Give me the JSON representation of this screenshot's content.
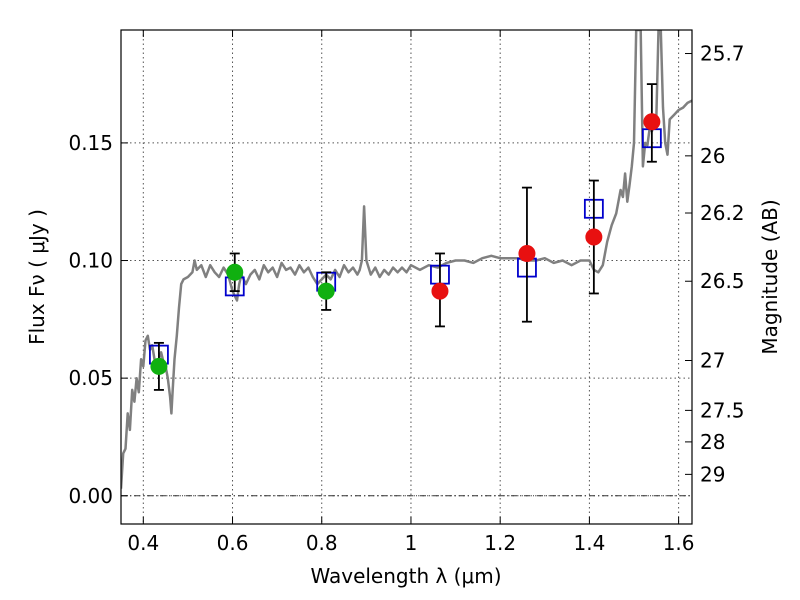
{
  "chart_data": {
    "type": "scatter",
    "title": "",
    "xlabel": "Wavelength  λ (μm)",
    "ylabel": "Flux  Fν  ( μJy )",
    "ylabel_right": "Magnitude (AB)",
    "xlim": [
      0.35,
      1.63
    ],
    "ylim": [
      -0.012,
      0.198
    ],
    "grid": true,
    "x_ticks": [
      0.4,
      0.6,
      0.8,
      1.0,
      1.2,
      1.4,
      1.6
    ],
    "x_tick_labels": [
      "0.4",
      "0.6",
      "0.8",
      "1",
      "1.2",
      "1.4",
      "1.6"
    ],
    "y_ticks": [
      0.0,
      0.05,
      0.1,
      0.15
    ],
    "y_tick_labels": [
      "0.00",
      "0.05",
      "0.10",
      "0.15"
    ],
    "right_ticks": [
      {
        "label": "25.7",
        "flux": 0.188
      },
      {
        "label": "26",
        "flux": 0.1445
      },
      {
        "label": "26.2",
        "flux": 0.1202
      },
      {
        "label": "26.5",
        "flux": 0.0912
      },
      {
        "label": "27",
        "flux": 0.0575
      },
      {
        "label": "27.5",
        "flux": 0.0363
      },
      {
        "label": "28",
        "flux": 0.0229
      },
      {
        "label": "29",
        "flux": 0.0091
      }
    ],
    "colors": {
      "model": "#808080",
      "square": "#0000cc",
      "green": "#10b010",
      "red": "#e81010",
      "errorbar": "#000000",
      "grid": "#555555"
    },
    "series": [
      {
        "kind": "model",
        "points": [
          [
            0.35,
            0.003
          ],
          [
            0.355,
            0.018
          ],
          [
            0.36,
            0.02
          ],
          [
            0.365,
            0.035
          ],
          [
            0.37,
            0.028
          ],
          [
            0.375,
            0.045
          ],
          [
            0.38,
            0.04
          ],
          [
            0.385,
            0.05
          ],
          [
            0.39,
            0.044
          ],
          [
            0.395,
            0.058
          ],
          [
            0.4,
            0.055
          ],
          [
            0.405,
            0.066
          ],
          [
            0.41,
            0.068
          ],
          [
            0.415,
            0.062
          ],
          [
            0.42,
            0.064
          ],
          [
            0.425,
            0.058
          ],
          [
            0.43,
            0.055
          ],
          [
            0.435,
            0.058
          ],
          [
            0.44,
            0.061
          ],
          [
            0.445,
            0.057
          ],
          [
            0.45,
            0.055
          ],
          [
            0.455,
            0.05
          ],
          [
            0.46,
            0.042
          ],
          [
            0.463,
            0.035
          ],
          [
            0.466,
            0.045
          ],
          [
            0.47,
            0.058
          ],
          [
            0.475,
            0.068
          ],
          [
            0.48,
            0.08
          ],
          [
            0.485,
            0.09
          ],
          [
            0.49,
            0.092
          ],
          [
            0.5,
            0.093
          ],
          [
            0.51,
            0.095
          ],
          [
            0.515,
            0.1
          ],
          [
            0.52,
            0.096
          ],
          [
            0.53,
            0.098
          ],
          [
            0.54,
            0.093
          ],
          [
            0.55,
            0.098
          ],
          [
            0.56,
            0.095
          ],
          [
            0.57,
            0.093
          ],
          [
            0.58,
            0.097
          ],
          [
            0.59,
            0.094
          ],
          [
            0.6,
            0.087
          ],
          [
            0.605,
            0.085
          ],
          [
            0.61,
            0.083
          ],
          [
            0.615,
            0.09
          ],
          [
            0.62,
            0.094
          ],
          [
            0.63,
            0.09
          ],
          [
            0.64,
            0.094
          ],
          [
            0.65,
            0.096
          ],
          [
            0.66,
            0.092
          ],
          [
            0.67,
            0.098
          ],
          [
            0.68,
            0.095
          ],
          [
            0.69,
            0.097
          ],
          [
            0.7,
            0.093
          ],
          [
            0.71,
            0.099
          ],
          [
            0.72,
            0.096
          ],
          [
            0.73,
            0.097
          ],
          [
            0.74,
            0.094
          ],
          [
            0.75,
            0.098
          ],
          [
            0.76,
            0.095
          ],
          [
            0.77,
            0.097
          ],
          [
            0.78,
            0.093
          ],
          [
            0.79,
            0.09
          ],
          [
            0.8,
            0.092
          ],
          [
            0.81,
            0.094
          ],
          [
            0.82,
            0.092
          ],
          [
            0.83,
            0.096
          ],
          [
            0.84,
            0.093
          ],
          [
            0.85,
            0.098
          ],
          [
            0.86,
            0.095
          ],
          [
            0.87,
            0.097
          ],
          [
            0.88,
            0.094
          ],
          [
            0.885,
            0.096
          ],
          [
            0.89,
            0.1
          ],
          [
            0.895,
            0.123
          ],
          [
            0.9,
            0.1
          ],
          [
            0.91,
            0.094
          ],
          [
            0.92,
            0.097
          ],
          [
            0.93,
            0.093
          ],
          [
            0.94,
            0.096
          ],
          [
            0.95,
            0.094
          ],
          [
            0.96,
            0.097
          ],
          [
            0.97,
            0.095
          ],
          [
            0.98,
            0.097
          ],
          [
            0.99,
            0.095
          ],
          [
            1.0,
            0.098
          ],
          [
            1.02,
            0.096
          ],
          [
            1.04,
            0.098
          ],
          [
            1.06,
            0.097
          ],
          [
            1.08,
            0.099
          ],
          [
            1.1,
            0.1
          ],
          [
            1.12,
            0.1
          ],
          [
            1.14,
            0.099
          ],
          [
            1.16,
            0.101
          ],
          [
            1.18,
            0.102
          ],
          [
            1.2,
            0.101
          ],
          [
            1.22,
            0.101
          ],
          [
            1.24,
            0.101
          ],
          [
            1.26,
            0.1
          ],
          [
            1.28,
            0.1
          ],
          [
            1.3,
            0.101
          ],
          [
            1.32,
            0.099
          ],
          [
            1.34,
            0.1
          ],
          [
            1.36,
            0.098
          ],
          [
            1.38,
            0.1
          ],
          [
            1.4,
            0.1
          ],
          [
            1.41,
            0.096
          ],
          [
            1.42,
            0.095
          ],
          [
            1.43,
            0.098
          ],
          [
            1.44,
            0.108
          ],
          [
            1.45,
            0.115
          ],
          [
            1.46,
            0.12
          ],
          [
            1.465,
            0.125
          ],
          [
            1.47,
            0.13
          ],
          [
            1.475,
            0.127
          ],
          [
            1.48,
            0.137
          ],
          [
            1.485,
            0.125
          ],
          [
            1.49,
            0.132
          ],
          [
            1.495,
            0.14
          ],
          [
            1.5,
            0.15
          ],
          [
            1.505,
            0.198
          ],
          [
            1.51,
            0.198
          ],
          [
            1.515,
            0.198
          ],
          [
            1.52,
            0.14
          ],
          [
            1.525,
            0.15
          ],
          [
            1.53,
            0.149
          ],
          [
            1.535,
            0.156
          ],
          [
            1.54,
            0.155
          ],
          [
            1.545,
            0.158
          ],
          [
            1.55,
            0.16
          ],
          [
            1.555,
            0.198
          ],
          [
            1.56,
            0.198
          ],
          [
            1.565,
            0.165
          ],
          [
            1.57,
            0.15
          ],
          [
            1.575,
            0.145
          ],
          [
            1.58,
            0.16
          ],
          [
            1.59,
            0.162
          ],
          [
            1.6,
            0.164
          ],
          [
            1.61,
            0.165
          ],
          [
            1.62,
            0.167
          ],
          [
            1.63,
            0.168
          ]
        ]
      },
      {
        "kind": "squares",
        "points": [
          [
            0.435,
            0.06
          ],
          [
            0.605,
            0.089
          ],
          [
            0.81,
            0.091
          ],
          [
            1.065,
            0.094
          ],
          [
            1.26,
            0.097
          ],
          [
            1.41,
            0.122
          ],
          [
            1.54,
            0.152
          ]
        ]
      },
      {
        "kind": "green",
        "points": [
          {
            "x": 0.435,
            "y": 0.055,
            "lo": 0.045,
            "hi": 0.065
          },
          {
            "x": 0.605,
            "y": 0.095,
            "lo": 0.087,
            "hi": 0.103
          },
          {
            "x": 0.81,
            "y": 0.087,
            "lo": 0.079,
            "hi": 0.095
          }
        ]
      },
      {
        "kind": "red",
        "points": [
          {
            "x": 1.065,
            "y": 0.087,
            "lo": 0.072,
            "hi": 0.103
          },
          {
            "x": 1.26,
            "y": 0.103,
            "lo": 0.074,
            "hi": 0.131
          },
          {
            "x": 1.41,
            "y": 0.11,
            "lo": 0.086,
            "hi": 0.134
          },
          {
            "x": 1.54,
            "y": 0.159,
            "lo": 0.142,
            "hi": 0.175
          }
        ]
      }
    ]
  }
}
